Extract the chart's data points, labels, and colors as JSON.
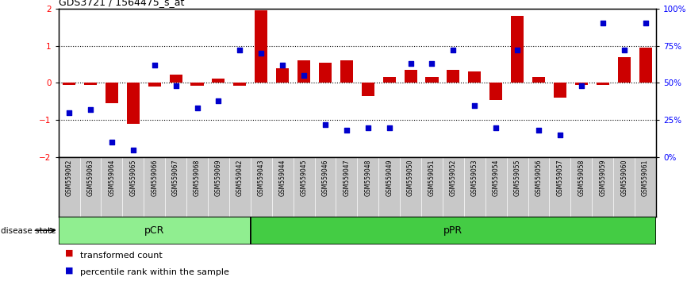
{
  "title": "GDS3721 / 1564475_s_at",
  "samples": [
    "GSM559062",
    "GSM559063",
    "GSM559064",
    "GSM559065",
    "GSM559066",
    "GSM559067",
    "GSM559068",
    "GSM559069",
    "GSM559042",
    "GSM559043",
    "GSM559044",
    "GSM559045",
    "GSM559046",
    "GSM559047",
    "GSM559048",
    "GSM559049",
    "GSM559050",
    "GSM559051",
    "GSM559052",
    "GSM559053",
    "GSM559054",
    "GSM559055",
    "GSM559056",
    "GSM559057",
    "GSM559058",
    "GSM559059",
    "GSM559060",
    "GSM559061"
  ],
  "bar_values": [
    -0.05,
    -0.05,
    -0.55,
    -1.1,
    -0.1,
    0.22,
    -0.07,
    0.12,
    -0.08,
    1.95,
    0.4,
    0.6,
    0.55,
    0.6,
    -0.35,
    0.15,
    0.35,
    0.15,
    0.35,
    0.3,
    -0.45,
    1.8,
    0.15,
    -0.4,
    -0.05,
    -0.05,
    0.7,
    0.95
  ],
  "percentile_values": [
    30,
    32,
    10,
    5,
    62,
    48,
    33,
    38,
    72,
    70,
    62,
    55,
    22,
    18,
    20,
    20,
    63,
    63,
    72,
    35,
    20,
    72,
    18,
    15,
    48,
    90,
    72,
    90
  ],
  "pCR_count": 9,
  "pPR_count": 19,
  "ylim": [
    -2,
    2
  ],
  "y2lim": [
    0,
    100
  ],
  "bar_color": "#cc0000",
  "dot_color": "#0000cc",
  "pCR_color": "#90ee90",
  "pPR_color": "#44cc44",
  "label_bg_color": "#c8c8c8",
  "legend_bar": "transformed count",
  "legend_dot": "percentile rank within the sample",
  "disease_label": "disease state"
}
